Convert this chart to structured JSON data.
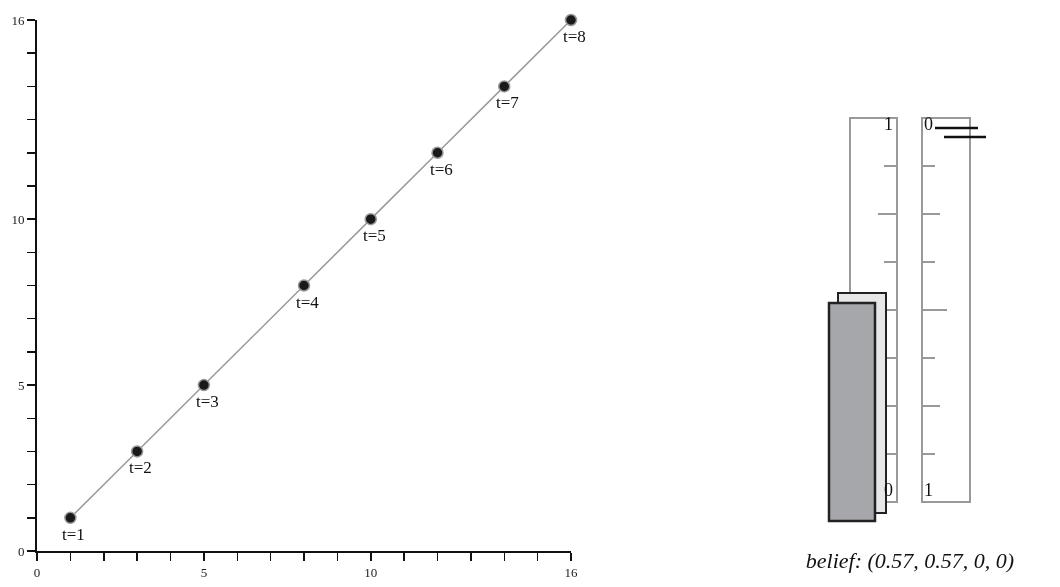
{
  "chart_data": [
    {
      "type": "line",
      "x": [
        1,
        3,
        5,
        8,
        10,
        12,
        14,
        16
      ],
      "series": [
        {
          "color": "#999999",
          "values": [
            1,
            3,
            5,
            8,
            10,
            12,
            14,
            16
          ]
        }
      ],
      "marker": "circle",
      "xlim": [
        0,
        16
      ],
      "ylim": [
        0,
        16
      ],
      "xticks": [
        0,
        {
          "value": 1,
          "label": null
        },
        {
          "value": 2,
          "label": null
        },
        {
          "value": 3,
          "label": null
        },
        {
          "value": 4,
          "label": null
        },
        5,
        {
          "value": 6,
          "label": null
        },
        {
          "value": 7,
          "label": null
        },
        {
          "value": 8,
          "label": null
        },
        {
          "value": 9,
          "label": null
        },
        10,
        {
          "value": 11,
          "label": null
        },
        {
          "value": 12,
          "label": null
        },
        {
          "value": 13,
          "label": null
        },
        {
          "value": 14,
          "label": null
        },
        {
          "value": 15,
          "label": null
        },
        16
      ],
      "yticks": [
        0,
        {
          "value": 1,
          "label": null
        },
        {
          "value": 2,
          "label": null
        },
        {
          "value": 3,
          "label": null
        },
        {
          "value": 4,
          "label": null
        },
        5,
        {
          "value": 6,
          "label": null
        },
        {
          "value": 7,
          "label": null
        },
        {
          "value": 8,
          "label": null
        },
        {
          "value": 9,
          "label": null
        },
        10,
        {
          "value": 11,
          "label": null
        },
        {
          "value": 12,
          "label": null
        },
        {
          "value": 13,
          "label": null
        },
        {
          "value": 14,
          "label": null
        },
        {
          "value": 15,
          "label": null
        },
        16
      ],
      "grid": false,
      "annotations": [
        {
          "text": "t=1",
          "x": 1,
          "y": 1
        },
        {
          "text": "t=2",
          "x": 3,
          "y": 3
        },
        {
          "text": "t=3",
          "x": 5,
          "y": 5
        },
        {
          "text": "t=4",
          "x": 8,
          "y": 8
        },
        {
          "text": "t=5",
          "x": 10,
          "y": 10
        },
        {
          "text": "t=6",
          "x": 12,
          "y": 12
        },
        {
          "text": "t=7",
          "x": 14,
          "y": 14
        },
        {
          "text": "t=8",
          "x": 16,
          "y": 16
        }
      ]
    },
    {
      "type": "other",
      "annotations": [
        "1",
        "0",
        "0",
        "1",
        "belief: (0.57, 0.57, 0, 0)"
      ]
    }
  ]
}
